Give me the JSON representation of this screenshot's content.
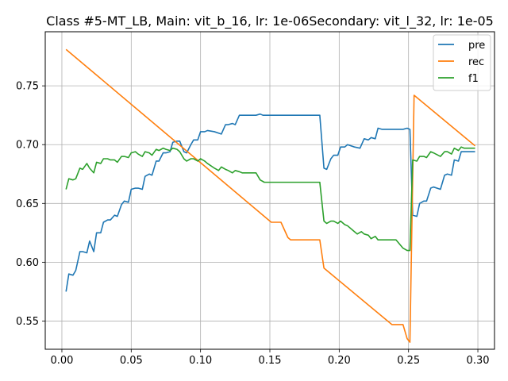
{
  "chart_data": {
    "type": "line",
    "title": "Class #5-MT_LB, Main: vit_b_16, lr: 1e-06Secondary: vit_l_32, lr: 1e-05",
    "xlabel": "",
    "ylabel": "",
    "xlim": [
      -0.012,
      0.312
    ],
    "ylim": [
      0.526,
      0.796
    ],
    "xticks": [
      0.0,
      0.05,
      0.1,
      0.15,
      0.2,
      0.25,
      0.3
    ],
    "xtick_labels": [
      "0.00",
      "0.05",
      "0.10",
      "0.15",
      "0.20",
      "0.25",
      "0.30"
    ],
    "yticks": [
      0.55,
      0.6,
      0.65,
      0.7,
      0.75
    ],
    "ytick_labels": [
      "0.55",
      "0.60",
      "0.65",
      "0.70",
      "0.75"
    ],
    "grid": true,
    "legend_position": "top-right",
    "series": [
      {
        "name": "pre",
        "color": "#1f77b4",
        "points": [
          [
            0.003,
            0.575
          ],
          [
            0.005,
            0.59
          ],
          [
            0.008,
            0.589
          ],
          [
            0.01,
            0.593
          ],
          [
            0.013,
            0.609
          ],
          [
            0.015,
            0.609
          ],
          [
            0.018,
            0.608
          ],
          [
            0.02,
            0.618
          ],
          [
            0.023,
            0.609
          ],
          [
            0.025,
            0.625
          ],
          [
            0.028,
            0.625
          ],
          [
            0.03,
            0.634
          ],
          [
            0.033,
            0.636
          ],
          [
            0.035,
            0.636
          ],
          [
            0.038,
            0.64
          ],
          [
            0.04,
            0.639
          ],
          [
            0.043,
            0.649
          ],
          [
            0.045,
            0.652
          ],
          [
            0.048,
            0.651
          ],
          [
            0.05,
            0.662
          ],
          [
            0.053,
            0.663
          ],
          [
            0.055,
            0.663
          ],
          [
            0.058,
            0.662
          ],
          [
            0.06,
            0.673
          ],
          [
            0.063,
            0.675
          ],
          [
            0.065,
            0.674
          ],
          [
            0.068,
            0.686
          ],
          [
            0.07,
            0.686
          ],
          [
            0.073,
            0.693
          ],
          [
            0.075,
            0.693
          ],
          [
            0.078,
            0.694
          ],
          [
            0.08,
            0.702
          ],
          [
            0.083,
            0.703
          ],
          [
            0.085,
            0.703
          ],
          [
            0.088,
            0.694
          ],
          [
            0.09,
            0.693
          ],
          [
            0.093,
            0.7
          ],
          [
            0.095,
            0.704
          ],
          [
            0.098,
            0.704
          ],
          [
            0.1,
            0.711
          ],
          [
            0.103,
            0.711
          ],
          [
            0.105,
            0.712
          ],
          [
            0.11,
            0.711
          ],
          [
            0.115,
            0.709
          ],
          [
            0.118,
            0.717
          ],
          [
            0.12,
            0.717
          ],
          [
            0.123,
            0.718
          ],
          [
            0.125,
            0.717
          ],
          [
            0.128,
            0.725
          ],
          [
            0.13,
            0.725
          ],
          [
            0.135,
            0.725
          ],
          [
            0.14,
            0.725
          ],
          [
            0.143,
            0.726
          ],
          [
            0.145,
            0.725
          ],
          [
            0.15,
            0.725
          ],
          [
            0.16,
            0.725
          ],
          [
            0.17,
            0.725
          ],
          [
            0.18,
            0.725
          ],
          [
            0.186,
            0.725
          ],
          [
            0.189,
            0.68
          ],
          [
            0.191,
            0.679
          ],
          [
            0.194,
            0.688
          ],
          [
            0.196,
            0.691
          ],
          [
            0.199,
            0.691
          ],
          [
            0.201,
            0.698
          ],
          [
            0.204,
            0.698
          ],
          [
            0.206,
            0.7
          ],
          [
            0.211,
            0.698
          ],
          [
            0.215,
            0.697
          ],
          [
            0.218,
            0.705
          ],
          [
            0.221,
            0.704
          ],
          [
            0.223,
            0.706
          ],
          [
            0.226,
            0.705
          ],
          [
            0.228,
            0.714
          ],
          [
            0.231,
            0.713
          ],
          [
            0.236,
            0.713
          ],
          [
            0.241,
            0.713
          ],
          [
            0.246,
            0.713
          ],
          [
            0.249,
            0.714
          ],
          [
            0.251,
            0.713
          ],
          [
            0.253,
            0.64
          ],
          [
            0.256,
            0.639
          ],
          [
            0.258,
            0.65
          ],
          [
            0.261,
            0.652
          ],
          [
            0.263,
            0.652
          ],
          [
            0.266,
            0.663
          ],
          [
            0.268,
            0.664
          ],
          [
            0.273,
            0.662
          ],
          [
            0.276,
            0.674
          ],
          [
            0.278,
            0.675
          ],
          [
            0.281,
            0.674
          ],
          [
            0.283,
            0.687
          ],
          [
            0.286,
            0.686
          ],
          [
            0.288,
            0.694
          ],
          [
            0.29,
            0.694
          ],
          [
            0.293,
            0.694
          ],
          [
            0.295,
            0.694
          ],
          [
            0.298,
            0.694
          ]
        ]
      },
      {
        "name": "rec",
        "color": "#ff7f0e",
        "points": [
          [
            0.003,
            0.781
          ],
          [
            0.151,
            0.634
          ],
          [
            0.158,
            0.634
          ],
          [
            0.163,
            0.621
          ],
          [
            0.165,
            0.619
          ],
          [
            0.186,
            0.619
          ],
          [
            0.189,
            0.595
          ],
          [
            0.238,
            0.547
          ],
          [
            0.246,
            0.547
          ],
          [
            0.249,
            0.535
          ],
          [
            0.251,
            0.532
          ],
          [
            0.254,
            0.742
          ],
          [
            0.298,
            0.699
          ]
        ]
      },
      {
        "name": "f1",
        "color": "#2ca02c",
        "points": [
          [
            0.003,
            0.662
          ],
          [
            0.005,
            0.671
          ],
          [
            0.008,
            0.67
          ],
          [
            0.01,
            0.671
          ],
          [
            0.013,
            0.68
          ],
          [
            0.015,
            0.679
          ],
          [
            0.018,
            0.684
          ],
          [
            0.02,
            0.68
          ],
          [
            0.023,
            0.676
          ],
          [
            0.025,
            0.685
          ],
          [
            0.028,
            0.684
          ],
          [
            0.03,
            0.688
          ],
          [
            0.033,
            0.688
          ],
          [
            0.035,
            0.687
          ],
          [
            0.038,
            0.687
          ],
          [
            0.04,
            0.685
          ],
          [
            0.043,
            0.69
          ],
          [
            0.045,
            0.69
          ],
          [
            0.048,
            0.689
          ],
          [
            0.05,
            0.693
          ],
          [
            0.053,
            0.694
          ],
          [
            0.055,
            0.692
          ],
          [
            0.058,
            0.69
          ],
          [
            0.06,
            0.694
          ],
          [
            0.063,
            0.693
          ],
          [
            0.065,
            0.691
          ],
          [
            0.068,
            0.696
          ],
          [
            0.07,
            0.695
          ],
          [
            0.073,
            0.697
          ],
          [
            0.075,
            0.696
          ],
          [
            0.078,
            0.695
          ],
          [
            0.08,
            0.697
          ],
          [
            0.083,
            0.696
          ],
          [
            0.085,
            0.694
          ],
          [
            0.088,
            0.688
          ],
          [
            0.09,
            0.686
          ],
          [
            0.093,
            0.688
          ],
          [
            0.095,
            0.688
          ],
          [
            0.098,
            0.686
          ],
          [
            0.1,
            0.688
          ],
          [
            0.103,
            0.686
          ],
          [
            0.105,
            0.684
          ],
          [
            0.11,
            0.68
          ],
          [
            0.113,
            0.678
          ],
          [
            0.115,
            0.681
          ],
          [
            0.118,
            0.679
          ],
          [
            0.12,
            0.678
          ],
          [
            0.123,
            0.676
          ],
          [
            0.125,
            0.678
          ],
          [
            0.128,
            0.677
          ],
          [
            0.13,
            0.676
          ],
          [
            0.135,
            0.676
          ],
          [
            0.14,
            0.676
          ],
          [
            0.143,
            0.67
          ],
          [
            0.146,
            0.668
          ],
          [
            0.15,
            0.668
          ],
          [
            0.16,
            0.668
          ],
          [
            0.17,
            0.668
          ],
          [
            0.186,
            0.668
          ],
          [
            0.189,
            0.635
          ],
          [
            0.191,
            0.633
          ],
          [
            0.194,
            0.635
          ],
          [
            0.196,
            0.635
          ],
          [
            0.199,
            0.633
          ],
          [
            0.201,
            0.635
          ],
          [
            0.204,
            0.632
          ],
          [
            0.206,
            0.631
          ],
          [
            0.211,
            0.626
          ],
          [
            0.213,
            0.624
          ],
          [
            0.216,
            0.626
          ],
          [
            0.218,
            0.624
          ],
          [
            0.221,
            0.623
          ],
          [
            0.223,
            0.62
          ],
          [
            0.226,
            0.622
          ],
          [
            0.228,
            0.619
          ],
          [
            0.231,
            0.619
          ],
          [
            0.236,
            0.619
          ],
          [
            0.241,
            0.619
          ],
          [
            0.246,
            0.612
          ],
          [
            0.249,
            0.61
          ],
          [
            0.251,
            0.61
          ],
          [
            0.253,
            0.687
          ],
          [
            0.256,
            0.686
          ],
          [
            0.258,
            0.69
          ],
          [
            0.261,
            0.69
          ],
          [
            0.263,
            0.689
          ],
          [
            0.266,
            0.694
          ],
          [
            0.268,
            0.693
          ],
          [
            0.273,
            0.69
          ],
          [
            0.276,
            0.694
          ],
          [
            0.278,
            0.694
          ],
          [
            0.281,
            0.692
          ],
          [
            0.283,
            0.697
          ],
          [
            0.286,
            0.695
          ],
          [
            0.288,
            0.698
          ],
          [
            0.29,
            0.697
          ],
          [
            0.293,
            0.697
          ],
          [
            0.295,
            0.697
          ],
          [
            0.298,
            0.697
          ]
        ]
      }
    ]
  }
}
